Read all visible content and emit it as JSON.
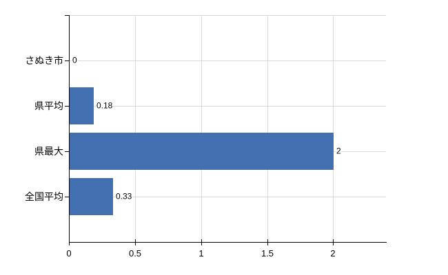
{
  "chart_data": {
    "type": "bar",
    "orientation": "horizontal",
    "title": "",
    "categories": [
      "さぬき市",
      "県平均",
      "県最大",
      "全国平均"
    ],
    "values": [
      0,
      0.18,
      2,
      0.33
    ],
    "value_labels": [
      "0",
      "0.18",
      "2",
      "0.33"
    ],
    "x_ticks": [
      0,
      0.5,
      1,
      1.5,
      2
    ],
    "x_tick_labels": [
      "0",
      "0.5",
      "1",
      "1.5",
      "2"
    ],
    "xlim": [
      0,
      2.4
    ],
    "grid": true,
    "legend": false,
    "colors": {
      "bar": "#416FAF",
      "grid": "#D9D9D9",
      "axis": "#000000",
      "text": "#000000",
      "background": "#FFFFFF"
    }
  }
}
